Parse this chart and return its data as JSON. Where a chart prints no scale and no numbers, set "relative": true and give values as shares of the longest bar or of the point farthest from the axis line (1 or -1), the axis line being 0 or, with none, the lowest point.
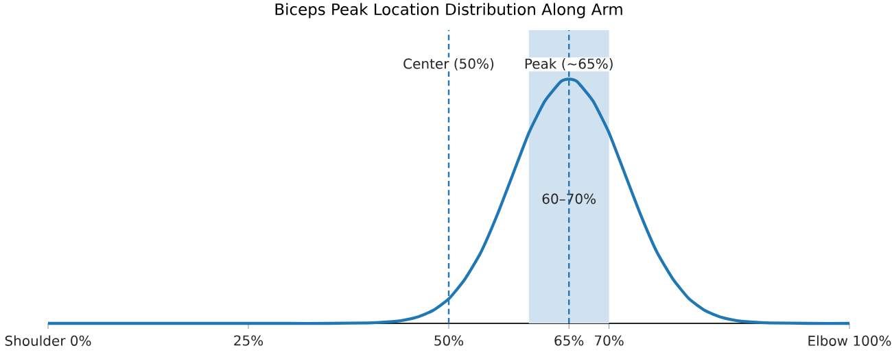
{
  "chart_data": {
    "type": "line",
    "title": "Biceps Peak Location Distribution Along Arm",
    "relative": true,
    "xlim": [
      0,
      100
    ],
    "xticks": [
      {
        "value": 0,
        "label": "Shoulder 0%"
      },
      {
        "value": 25,
        "label": "25%"
      },
      {
        "value": 50,
        "label": "50%"
      },
      {
        "value": 65,
        "label": "65%"
      },
      {
        "value": 70,
        "label": "70%"
      },
      {
        "value": 100,
        "label": "Elbow 100%"
      }
    ],
    "series": [
      {
        "color": "#1f77b4",
        "x": [
          0,
          10,
          20,
          30,
          35,
          40,
          42,
          44,
          46,
          48,
          50,
          52,
          54,
          56,
          58,
          60,
          62,
          64,
          65,
          66,
          68,
          70,
          72,
          74,
          76,
          78,
          80,
          82,
          84,
          86,
          88,
          90,
          95,
          100
        ],
        "values": [
          0,
          0,
          0,
          0,
          0,
          0.002,
          0.005,
          0.011,
          0.025,
          0.052,
          0.1,
          0.18,
          0.29,
          0.44,
          0.61,
          0.78,
          0.91,
          0.99,
          1,
          0.99,
          0.91,
          0.78,
          0.61,
          0.44,
          0.29,
          0.18,
          0.1,
          0.052,
          0.025,
          0.011,
          0.005,
          0.002,
          0,
          0
        ]
      }
    ],
    "ref_lines": [
      {
        "axis": "x",
        "value": 50,
        "label": "Center (50%)",
        "color": "#1f77b4",
        "line_style": "dashed"
      },
      {
        "axis": "x",
        "value": 65,
        "label": "Peak (~65%)",
        "color": "#1f77b4",
        "line_style": "dashed"
      }
    ],
    "bands": [
      {
        "axis": "x",
        "from": 60,
        "to": 70,
        "label": "60–70%",
        "color": "#d0e1f0"
      }
    ]
  }
}
